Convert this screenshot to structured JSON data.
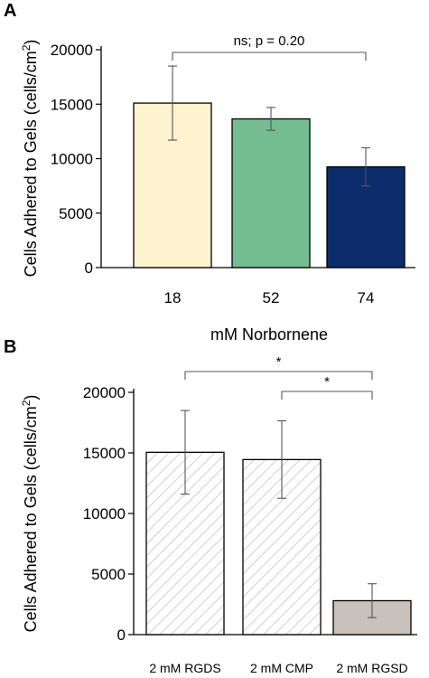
{
  "chart_data": [
    {
      "type": "bar",
      "panel": "A",
      "categories": [
        "18",
        "52",
        "74"
      ],
      "values": [
        15100,
        13650,
        9250
      ],
      "errors": [
        3400,
        1050,
        1750
      ],
      "colors": [
        "#fdf3cf",
        "#74bd90",
        "#0c2c6c"
      ],
      "xlabel": "mM Norbornene",
      "ylabel": "Cells Adhered to Gels (cells/cm",
      "ylabel_sup": "2",
      "ylabel_close": ")",
      "ylim": [
        0,
        20000
      ],
      "yticks": [
        "0",
        "5000",
        "10000",
        "15000",
        "20000"
      ],
      "yticks_values": [
        0,
        5000,
        10000,
        15000,
        20000
      ],
      "annotations": [
        {
          "from": 0,
          "to": 2,
          "text": "ns; p = 0.20"
        }
      ]
    },
    {
      "type": "bar",
      "panel": "B",
      "categories": [
        "2 mM RGDS",
        "2 mM CMP",
        "2 mM RGSD"
      ],
      "values": [
        15050,
        14450,
        2800
      ],
      "errors": [
        3450,
        3200,
        1400
      ],
      "colors": [
        "hatch",
        "hatch",
        "#c9c1bb"
      ],
      "xlabel": "",
      "ylabel": "Cells Adhered to Gels (cells/cm",
      "ylabel_sup": "2",
      "ylabel_close": ")",
      "ylim": [
        0,
        20000
      ],
      "yticks": [
        "0",
        "5000",
        "10000",
        "15000",
        "20000"
      ],
      "yticks_values": [
        0,
        5000,
        10000,
        15000,
        20000
      ],
      "annotations": [
        {
          "from": 0,
          "to": 2,
          "text": "*"
        },
        {
          "from": 1,
          "to": 2,
          "text": "*"
        }
      ]
    }
  ]
}
